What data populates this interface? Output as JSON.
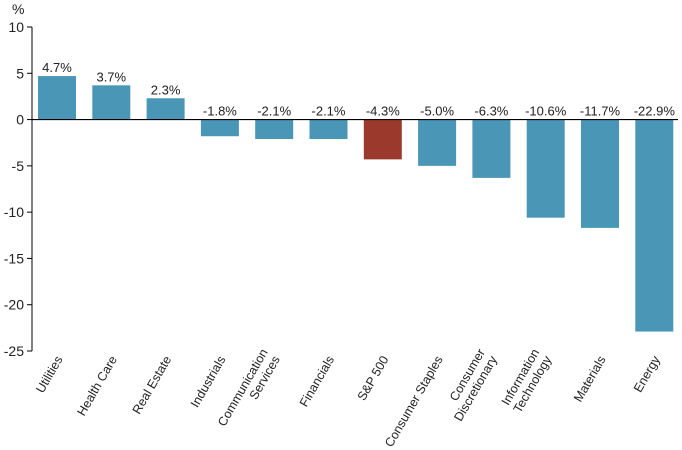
{
  "chart_data": {
    "type": "bar",
    "ylabel": "%",
    "ylim": [
      -25,
      10
    ],
    "yticks": [
      10,
      5,
      0,
      -5,
      -10,
      -15,
      -20,
      -25
    ],
    "grid": false,
    "legend": "none",
    "categories": [
      "Utilities",
      "Health Care",
      "Real Estate",
      "Industrials",
      "Communication Services",
      "Financials",
      "S&P 500",
      "Consumer Staples",
      "Consumer Discretionary",
      "Information Technology",
      "Materials",
      "Energy"
    ],
    "category_lines": [
      [
        "Utilities"
      ],
      [
        "Health Care"
      ],
      [
        "Real Estate"
      ],
      [
        "Industrials"
      ],
      [
        "Communication",
        "Services"
      ],
      [
        "Financials"
      ],
      [
        "S&P 500"
      ],
      [
        "Consumer Staples"
      ],
      [
        "Consumer",
        "Discretionary"
      ],
      [
        "Information",
        "Technology"
      ],
      [
        "Materials"
      ],
      [
        "Energy"
      ]
    ],
    "values": [
      4.7,
      3.7,
      2.3,
      -1.8,
      -2.1,
      -2.1,
      -4.3,
      -5.0,
      -6.3,
      -10.6,
      -11.7,
      -22.9
    ],
    "data_labels": [
      "4.7%",
      "3.7%",
      "2.3%",
      "-1.8%",
      "-2.1%",
      "-2.1%",
      "-4.3%",
      "-5.0%",
      "-6.3%",
      "-10.6%",
      "-11.7%",
      "-22.9%"
    ],
    "colors": {
      "default": "#4a96b6",
      "highlight": "#9b3a2c",
      "highlight_category": "S&P 500",
      "axis": "#000000",
      "text": "#222222"
    }
  }
}
